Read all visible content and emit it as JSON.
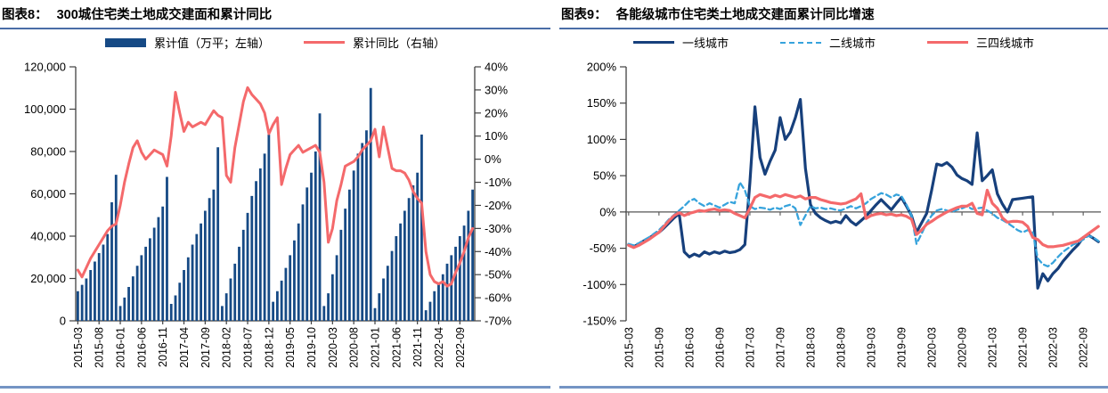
{
  "colors": {
    "bar_navy": "#164a85",
    "line_navy": "#17407c",
    "line_sky": "#36a3dc",
    "line_salmon": "#f4696b",
    "title_underline": "#4a6da7",
    "bottom_rule": "#7494c4",
    "axis": "#404040"
  },
  "chart_data": [
    {
      "type": "bar+line",
      "title_label": "图表8：",
      "title": "300城住宅类土地成交建面和累计同比",
      "x_start": "2015-03",
      "x_end": "2022-12",
      "x_tick_every": 5,
      "x_tick_labels": [
        "2015-03",
        "2015-08",
        "2016-01",
        "2016-06",
        "2016-11",
        "2017-04",
        "2017-09",
        "2018-02",
        "2018-07",
        "2018-12",
        "2019-05",
        "2019-10",
        "2020-03",
        "2020-08",
        "2021-01",
        "2021-06",
        "2021-11",
        "2022-04",
        "2022-09"
      ],
      "left_axis": {
        "min": 0,
        "max": 120000,
        "step": 20000,
        "tick_labels": [
          "0",
          "20,000",
          "40,000",
          "60,000",
          "80,000",
          "100,000",
          "120,000"
        ]
      },
      "right_axis": {
        "min": -70,
        "max": 40,
        "step": 10,
        "unit": "%",
        "tick_labels": [
          "-70%",
          "-60%",
          "-50%",
          "-40%",
          "-30%",
          "-20%",
          "-10%",
          "0%",
          "10%",
          "20%",
          "30%",
          "40%"
        ]
      },
      "series": [
        {
          "name": "累计值（万平；左轴）",
          "type": "bar",
          "axis": "left",
          "color": "#164a85",
          "values": [
            14000,
            17000,
            20000,
            24000,
            28000,
            32000,
            36000,
            41000,
            56000,
            69000,
            7000,
            11000,
            16000,
            21000,
            26000,
            31000,
            35000,
            39000,
            44000,
            49000,
            54000,
            68000,
            8000,
            12000,
            18000,
            24000,
            30000,
            36000,
            41000,
            46000,
            52000,
            58000,
            62000,
            82000,
            7000,
            13000,
            20000,
            27000,
            35000,
            43000,
            51000,
            59000,
            66000,
            72000,
            79000,
            88000,
            9000,
            14000,
            19000,
            25000,
            31000,
            38000,
            46000,
            55000,
            63000,
            70000,
            80000,
            98000,
            7000,
            13000,
            22000,
            31000,
            43000,
            53000,
            62000,
            71000,
            79000,
            84000,
            90000,
            110000,
            6000,
            13000,
            20000,
            26000,
            33000,
            40000,
            46000,
            52000,
            58000,
            64000,
            70000,
            88000,
            5000,
            9000,
            14000,
            18000,
            22000,
            27000,
            31000,
            35000,
            40000,
            45000,
            52000,
            62000
          ]
        },
        {
          "name": "累计同比（右轴）",
          "type": "line",
          "axis": "right",
          "color": "#f4696b",
          "values": [
            -48,
            -51,
            -47,
            -43,
            -40,
            -37,
            -34,
            -31,
            -29,
            -28,
            -20,
            -10,
            -2,
            5,
            8,
            3,
            0,
            2,
            4,
            3,
            2,
            -3,
            10,
            29,
            20,
            12,
            16,
            14,
            15,
            16,
            15,
            18,
            21,
            19,
            18,
            -7,
            -10,
            5,
            15,
            25,
            31,
            28,
            26,
            24,
            20,
            11,
            15,
            18,
            -11,
            -4,
            2,
            4,
            6,
            3,
            4,
            5,
            6,
            3,
            -10,
            -36,
            -30,
            -18,
            -11,
            -3,
            -2,
            -1,
            1,
            4,
            6,
            8,
            13,
            1,
            14,
            5,
            -4,
            -5,
            -5,
            -6,
            -9,
            -14,
            -17,
            -19,
            -40,
            -50,
            -53,
            -54,
            -53,
            -55,
            -54,
            -49,
            -45,
            -40,
            -34,
            -30
          ]
        }
      ]
    },
    {
      "type": "line",
      "title_label": "图表9：",
      "title": "各能级城市住宅类土地成交建面累计同比增速",
      "x_start": "2015-03",
      "x_end": "2022-12",
      "x_tick_every": 6,
      "x_tick_labels": [
        "2015-03",
        "2015-09",
        "2016-03",
        "2016-09",
        "2017-03",
        "2017-09",
        "2018-03",
        "2018-09",
        "2019-03",
        "2019-09",
        "2020-03",
        "2020-09",
        "2021-03",
        "2021-09",
        "2022-03",
        "2022-09"
      ],
      "y_axis": {
        "min": -150,
        "max": 200,
        "step": 50,
        "unit": "%",
        "tick_labels": [
          "-150%",
          "-100%",
          "-50%",
          "0%",
          "50%",
          "100%",
          "150%",
          "200%"
        ]
      },
      "series": [
        {
          "name": "一线城市",
          "dash": "solid",
          "color": "#17407c",
          "values": [
            -45,
            -48,
            -44,
            -40,
            -36,
            -32,
            -28,
            -22,
            -15,
            -8,
            -2,
            -55,
            -62,
            -58,
            -61,
            -55,
            -58,
            -55,
            -57,
            -54,
            -56,
            -55,
            -52,
            -45,
            40,
            145,
            75,
            52,
            70,
            85,
            130,
            100,
            110,
            130,
            155,
            60,
            10,
            -2,
            -8,
            -12,
            -15,
            -13,
            -15,
            -5,
            -13,
            -18,
            -12,
            -6,
            2,
            10,
            17,
            10,
            3,
            12,
            20,
            8,
            -5,
            -28,
            -15,
            -2,
            30,
            66,
            64,
            68,
            62,
            51,
            46,
            43,
            38,
            109,
            43,
            50,
            58,
            25,
            11,
            0,
            17,
            18,
            19,
            20,
            21,
            -105,
            -85,
            -95,
            -85,
            -78,
            -68,
            -60,
            -52,
            -45,
            -35,
            -32,
            -36,
            -41
          ]
        },
        {
          "name": "二线城市",
          "dash": "dashed",
          "color": "#36a3dc",
          "values": [
            -44,
            -46,
            -43,
            -39,
            -35,
            -30,
            -25,
            -18,
            -10,
            -4,
            2,
            8,
            15,
            18,
            12,
            8,
            12,
            9,
            6,
            10,
            14,
            12,
            41,
            30,
            8,
            4,
            6,
            5,
            3,
            6,
            4,
            8,
            10,
            5,
            -18,
            -5,
            8,
            5,
            6,
            4,
            5,
            3,
            2,
            5,
            8,
            5,
            8,
            12,
            18,
            22,
            26,
            24,
            20,
            24,
            22,
            10,
            -5,
            -44,
            -30,
            -15,
            -5,
            2,
            4,
            2,
            0,
            3,
            5,
            8,
            4,
            5,
            6,
            2,
            -2,
            -8,
            -11,
            -15,
            -20,
            -25,
            -28,
            -25,
            -28,
            -64,
            -72,
            -75,
            -70,
            -62,
            -55,
            -50,
            -45,
            -42,
            -38,
            -33,
            -35,
            -40
          ]
        },
        {
          "name": "三四线城市",
          "dash": "solid",
          "color": "#f4696b",
          "values": [
            -46,
            -49,
            -46,
            -42,
            -38,
            -33,
            -28,
            -20,
            -12,
            -5,
            -1,
            -5,
            -2,
            0,
            2,
            1,
            3,
            4,
            2,
            3,
            2,
            -2,
            -5,
            -8,
            5,
            20,
            24,
            22,
            20,
            23,
            21,
            24,
            22,
            20,
            22,
            18,
            20,
            20,
            17,
            15,
            13,
            12,
            11,
            12,
            15,
            18,
            25,
            -9,
            -5,
            -3,
            -2,
            -4,
            -3,
            -5,
            -4,
            -6,
            -10,
            -31,
            -25,
            -17,
            -13,
            -8,
            -4,
            0,
            3,
            6,
            8,
            8,
            12,
            -2,
            -4,
            30,
            12,
            5,
            -8,
            -14,
            -13,
            -13,
            -14,
            -20,
            -35,
            -38,
            -45,
            -48,
            -48,
            -47,
            -46,
            -44,
            -42,
            -40,
            -35,
            -30,
            -25,
            -20
          ]
        }
      ]
    }
  ]
}
